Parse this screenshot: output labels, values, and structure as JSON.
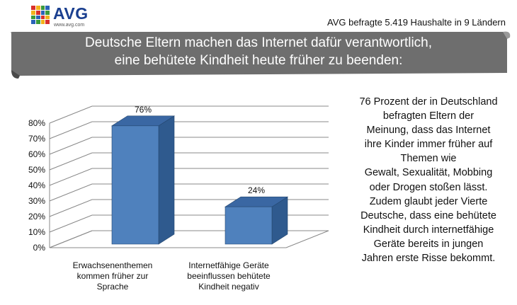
{
  "header": {
    "logo_word": "AVG",
    "logo_url": "www.avg.com",
    "survey_note": "AVG befragte 5.419 Haushalte in 9 Ländern"
  },
  "banner": {
    "line1": "Deutsche Eltern machen das Internet dafür verantwortlich,",
    "line2": "eine behütete Kindheit heute früher zu beenden:"
  },
  "description": [
    "76 Prozent der in Deutschland",
    "befragten Eltern der",
    "Meinung, dass das Internet",
    "ihre Kinder immer früher auf",
    "Themen wie",
    "Gewalt, Sexualität, Mobbing",
    "oder Drogen stoßen lässt.",
    "Zudem glaubt jeder Vierte",
    "Deutsche, dass eine behütete",
    "Kindheit durch internetfähige",
    "Geräte bereits in jungen",
    "Jahren erste Risse bekommt."
  ],
  "colors": {
    "bar_front": "#4f81bd",
    "bar_side": "#2f5a8e",
    "bar_top": "#3a67a3",
    "banner": "#6e6e6e",
    "logo_word": "#1a3f8f"
  },
  "chart_data": {
    "type": "bar",
    "style": "3d-column",
    "categories": [
      [
        "Erwachsenenthemen",
        "kommen früher zur",
        "Sprache"
      ],
      [
        "Internetfähige Geräte",
        "beeinflussen behütete",
        "Kindheit negativ"
      ]
    ],
    "values": [
      76,
      24
    ],
    "data_labels": [
      "76%",
      "24%"
    ],
    "yticks": [
      "0%",
      "10%",
      "20%",
      "30%",
      "40%",
      "50%",
      "60%",
      "70%",
      "80%"
    ],
    "ylim": [
      0,
      80
    ],
    "grid": true,
    "legend": "none"
  }
}
